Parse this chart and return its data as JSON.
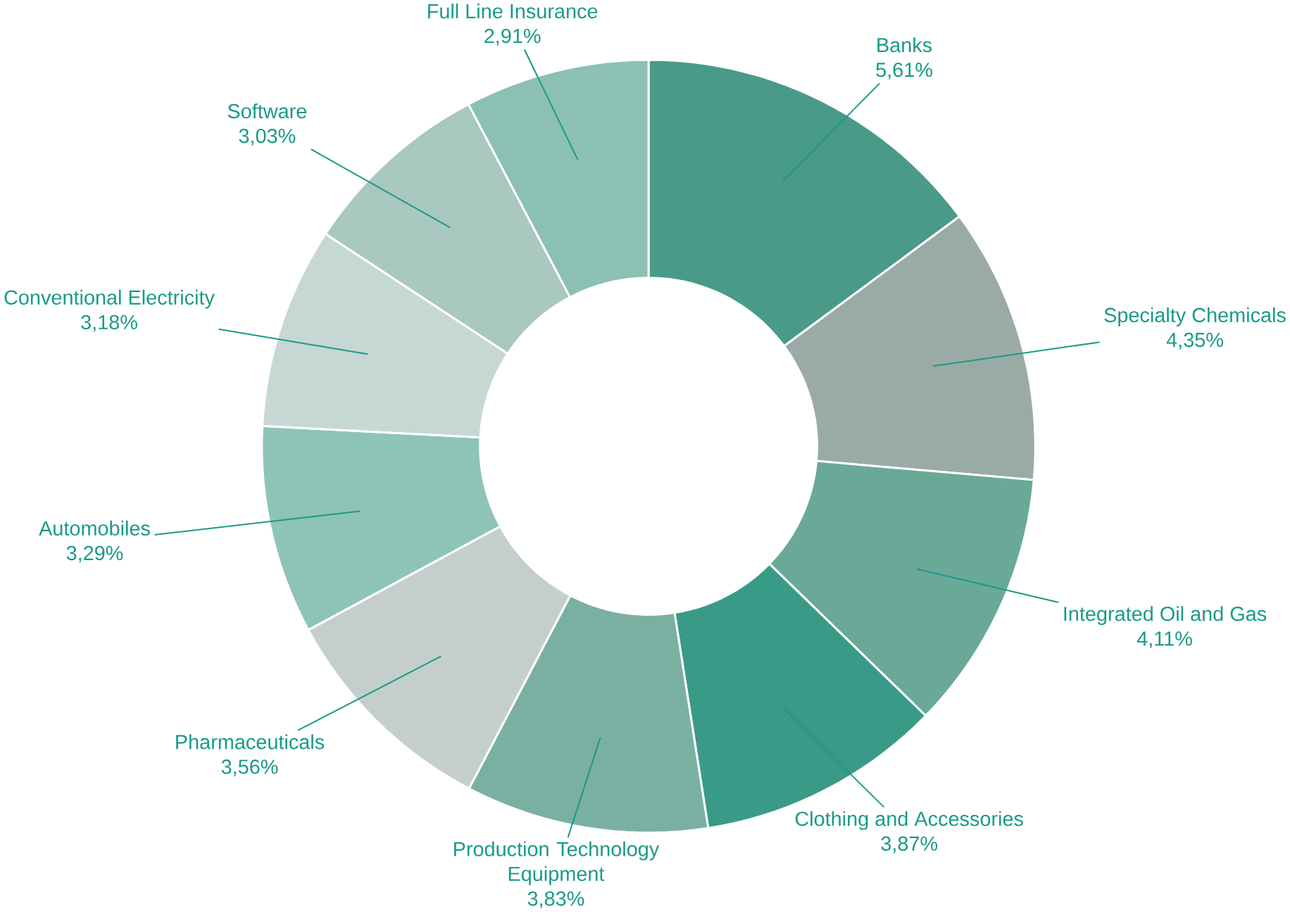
{
  "chart_data": {
    "type": "donut",
    "categories": [
      "Banks",
      "Specialty Chemicals",
      "Integrated Oil and Gas",
      "Clothing and Accessories",
      "Production Technology Equipment",
      "Pharmaceuticals",
      "Automobiles",
      "Conventional Electricity",
      "Software",
      "Full Line Insurance"
    ],
    "values": [
      5.61,
      4.35,
      4.11,
      3.87,
      3.83,
      3.56,
      3.29,
      3.18,
      3.03,
      2.91
    ],
    "value_labels": [
      "5,61%",
      "4,35%",
      "4,11%",
      "3,87%",
      "3,83%",
      "3,56%",
      "3,29%",
      "3,18%",
      "3,03%",
      "2,91%"
    ],
    "colors": [
      "#4a9a8a",
      "#9aaba6",
      "#6aa898",
      "#3a9a88",
      "#7ab0a2",
      "#c4cfcc",
      "#8ec4b8",
      "#c6d8d4",
      "#a8c8c0",
      "#8cc0b4"
    ]
  }
}
